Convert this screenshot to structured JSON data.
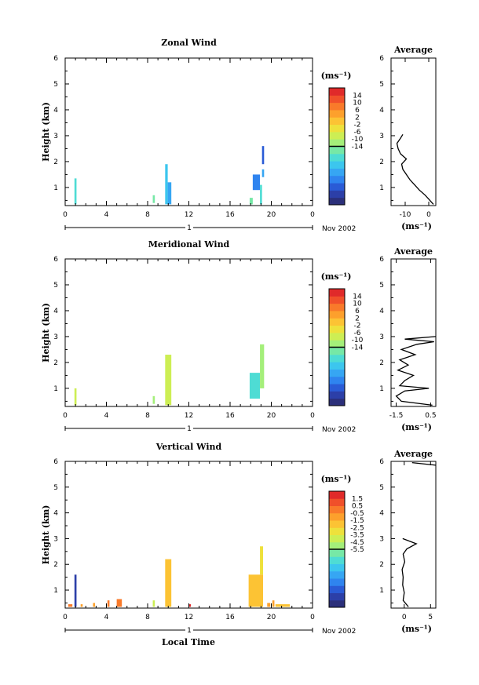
{
  "chart_data": [
    {
      "type": "heatmap",
      "title": "Zonal Wind",
      "ylabel": "Height (km)",
      "xlabel": "",
      "x_ticks": [
        "0",
        "4",
        "8",
        "12",
        "16",
        "20",
        "0"
      ],
      "y_ticks": [
        "1",
        "2",
        "3",
        "4",
        "5",
        "6"
      ],
      "xlim": [
        0,
        24
      ],
      "ylim": [
        0.3,
        6
      ],
      "day_label": "1",
      "date_label": "Nov 2002",
      "colorbar": {
        "unit_label": "(ms⁻¹)",
        "min": -16,
        "max": 16,
        "tick_labels": [
          "14",
          "10",
          "6",
          "2",
          "-2",
          "-6",
          "-10",
          "-14"
        ]
      },
      "cells": [
        {
          "t0": 0.9,
          "t1": 1.1,
          "h0": 0.35,
          "h1": 1.35,
          "v": -3
        },
        {
          "t0": 8.5,
          "t1": 8.7,
          "h0": 0.4,
          "h1": 0.7,
          "v": -1
        },
        {
          "t0": 9.7,
          "t1": 9.95,
          "h0": 0.35,
          "h1": 1.9,
          "v": -6
        },
        {
          "t0": 9.95,
          "t1": 10.3,
          "h0": 0.35,
          "h1": 1.2,
          "v": -8
        },
        {
          "t0": 17.9,
          "t1": 18.2,
          "h0": 0.35,
          "h1": 0.6,
          "v": -2
        },
        {
          "t0": 18.2,
          "t1": 18.9,
          "h0": 0.9,
          "h1": 1.5,
          "v": -9
        },
        {
          "t0": 18.9,
          "t1": 19.1,
          "h0": 0.35,
          "h1": 1.1,
          "v": -4
        },
        {
          "t0": 19.1,
          "t1": 19.3,
          "h0": 1.4,
          "h1": 1.7,
          "v": -8
        },
        {
          "t0": 19.1,
          "t1": 19.3,
          "h0": 1.9,
          "h1": 2.6,
          "v": -12
        }
      ],
      "avg": {
        "title": "Average",
        "xlabel": "(ms⁻¹)",
        "x_ticks": [
          "-10",
          "0"
        ],
        "xlim": [
          -16,
          3
        ],
        "heights": [
          0.35,
          0.5,
          0.7,
          0.9,
          1.1,
          1.3,
          1.5,
          1.7,
          1.9,
          2.1,
          2.3,
          2.5,
          2.7,
          2.9,
          3.05
        ],
        "values": [
          2,
          0.5,
          -1.5,
          -4,
          -6,
          -8,
          -9.5,
          -11,
          -11.5,
          -9.5,
          -12,
          -13,
          -13.5,
          -12,
          -11
        ]
      }
    },
    {
      "type": "heatmap",
      "title": "Meridional Wind",
      "ylabel": "Height (km)",
      "xlabel": "",
      "x_ticks": [
        "0",
        "4",
        "8",
        "12",
        "16",
        "20",
        "0"
      ],
      "y_ticks": [
        "1",
        "2",
        "3",
        "4",
        "5",
        "6"
      ],
      "xlim": [
        0,
        24
      ],
      "ylim": [
        0.3,
        6
      ],
      "day_label": "1",
      "date_label": "Nov 2002",
      "colorbar": {
        "unit_label": "(ms⁻¹)",
        "min": -16,
        "max": 16,
        "tick_labels": [
          "14",
          "10",
          "6",
          "2",
          "-2",
          "-6",
          "-10",
          "-14"
        ]
      },
      "cells": [
        {
          "t0": 0.9,
          "t1": 1.1,
          "h0": 0.35,
          "h1": 1.0,
          "v": 2
        },
        {
          "t0": 8.5,
          "t1": 8.7,
          "h0": 0.4,
          "h1": 0.7,
          "v": 1
        },
        {
          "t0": 9.7,
          "t1": 10.3,
          "h0": 0.35,
          "h1": 2.3,
          "v": 2
        },
        {
          "t0": 17.9,
          "t1": 18.9,
          "h0": 0.6,
          "h1": 1.6,
          "v": -3
        },
        {
          "t0": 18.9,
          "t1": 19.3,
          "h0": 1.0,
          "h1": 2.7,
          "v": 1
        }
      ],
      "avg": {
        "title": "Average",
        "xlabel": "(ms⁻¹)",
        "x_ticks": [
          "-1.5",
          "0.5"
        ],
        "xlim": [
          -1.8,
          0.8
        ],
        "heights": [
          0.35,
          0.5,
          0.7,
          0.9,
          1.0,
          1.1,
          1.3,
          1.5,
          1.7,
          1.9,
          2.1,
          2.3,
          2.5,
          2.7,
          2.8,
          2.9,
          3.0
        ],
        "values": [
          0.6,
          -1.2,
          -1.5,
          -1.0,
          0.4,
          -1.3,
          -1.0,
          -0.5,
          -1.4,
          -0.8,
          -1.3,
          -0.4,
          -1.2,
          -0.3,
          0.7,
          -1.0,
          0.8
        ]
      }
    },
    {
      "type": "heatmap",
      "title": "Vertical Wind",
      "ylabel": "Height (km)",
      "xlabel": "Local Time",
      "x_ticks": [
        "0",
        "4",
        "8",
        "12",
        "16",
        "20",
        "0"
      ],
      "y_ticks": [
        "1",
        "2",
        "3",
        "4",
        "5",
        "6"
      ],
      "xlim": [
        0,
        24
      ],
      "ylim": [
        0.3,
        6
      ],
      "day_label": "1",
      "date_label": "Nov 2002",
      "colorbar": {
        "unit_label": "(ms⁻¹)",
        "min": -6,
        "max": 2,
        "tick_labels": [
          "1.5",
          "0.5",
          "-0.5",
          "-1.5",
          "-2.5",
          "-3.5",
          "-4.5",
          "-5.5"
        ]
      },
      "cells": [
        {
          "t0": 0.3,
          "t1": 0.7,
          "h0": 0.35,
          "h1": 0.45,
          "v": 0.5
        },
        {
          "t0": 0.9,
          "t1": 1.1,
          "h0": 0.35,
          "h1": 1.6,
          "v": -5.5
        },
        {
          "t0": 1.5,
          "t1": 1.7,
          "h0": 0.35,
          "h1": 0.45,
          "v": 0.0
        },
        {
          "t0": 2.7,
          "t1": 2.9,
          "h0": 0.35,
          "h1": 0.5,
          "v": 0.3
        },
        {
          "t0": 4.1,
          "t1": 4.3,
          "h0": 0.35,
          "h1": 0.6,
          "v": 0.5
        },
        {
          "t0": 5.0,
          "t1": 5.5,
          "h0": 0.35,
          "h1": 0.65,
          "v": 0.6
        },
        {
          "t0": 8.5,
          "t1": 8.7,
          "h0": 0.35,
          "h1": 0.6,
          "v": -1.5
        },
        {
          "t0": 9.7,
          "t1": 10.3,
          "h0": 0.35,
          "h1": 2.2,
          "v": -0.5
        },
        {
          "t0": 12.0,
          "t1": 12.2,
          "h0": 0.35,
          "h1": 0.45,
          "v": 1.5
        },
        {
          "t0": 17.8,
          "t1": 19.2,
          "h0": 0.35,
          "h1": 1.6,
          "v": -0.2
        },
        {
          "t0": 18.9,
          "t1": 19.2,
          "h0": 1.6,
          "h1": 2.7,
          "v": -1.0
        },
        {
          "t0": 19.6,
          "t1": 19.9,
          "h0": 0.35,
          "h1": 0.5,
          "v": 0.2
        },
        {
          "t0": 20.1,
          "t1": 20.3,
          "h0": 0.35,
          "h1": 0.6,
          "v": 0.4
        },
        {
          "t0": 20.4,
          "t1": 21.8,
          "h0": 0.35,
          "h1": 0.45,
          "v": -0.3
        }
      ],
      "avg": {
        "title": "Average",
        "xlabel": "(ms⁻¹)",
        "x_ticks": [
          "0",
          "5"
        ],
        "xlim": [
          -2.5,
          6
        ],
        "heights": [
          0.35,
          0.6,
          0.9,
          1.2,
          1.5,
          1.8,
          2.1,
          2.4,
          2.6,
          2.8,
          3.0
        ],
        "values": [
          0.8,
          -0.2,
          0.0,
          -0.3,
          -0.2,
          -0.4,
          0.1,
          -0.2,
          0.5,
          2.3,
          -0.3
        ],
        "upper_segment": {
          "heights": [
            5.95,
            5.85
          ],
          "values": [
            1.5,
            6
          ]
        }
      }
    }
  ]
}
